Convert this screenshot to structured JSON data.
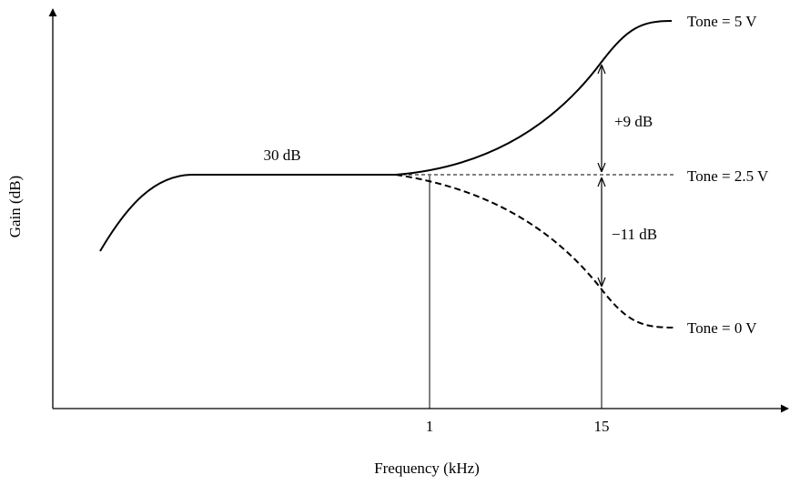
{
  "figure": {
    "axis_labels": {
      "y": "Gain (dB)",
      "x": "Frequency (kHz)"
    },
    "x_ticks": [
      "1",
      "15"
    ],
    "annotations": {
      "midband_gain": "30 dB",
      "boost": "+9 dB",
      "cut": "−11 dB"
    },
    "curves": [
      {
        "id": "tone-5v",
        "label": "Tone = 5 V",
        "style": "solid"
      },
      {
        "id": "tone-2-5v",
        "label": "Tone = 2.5 V",
        "style": "dashed-thin"
      },
      {
        "id": "tone-0v",
        "label": "Tone = 0 V",
        "style": "dashed"
      }
    ],
    "colors": {
      "line": "#000000",
      "background": "#ffffff"
    }
  }
}
